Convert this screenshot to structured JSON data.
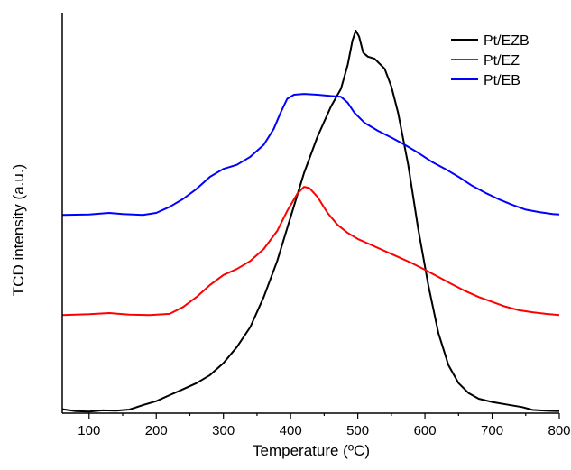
{
  "chart_data": {
    "type": "line",
    "xlabel": "Temperature (ºC)",
    "ylabel": "TCD intensity (a.u.)",
    "xlim": [
      60,
      800
    ],
    "ylim": [
      0,
      1.0
    ],
    "x_ticks": [
      100,
      200,
      300,
      400,
      500,
      600,
      700,
      800
    ],
    "y_ticks_visible": false,
    "grid": false,
    "legend_position": "top-right",
    "series": [
      {
        "name": "Pt/EZB",
        "color": "#000000",
        "points": [
          [
            60,
            0.01
          ],
          [
            80,
            0.005
          ],
          [
            100,
            0.004
          ],
          [
            120,
            0.007
          ],
          [
            140,
            0.006
          ],
          [
            160,
            0.009
          ],
          [
            180,
            0.02
          ],
          [
            200,
            0.03
          ],
          [
            220,
            0.045
          ],
          [
            240,
            0.06
          ],
          [
            260,
            0.075
          ],
          [
            280,
            0.095
          ],
          [
            300,
            0.125
          ],
          [
            320,
            0.165
          ],
          [
            340,
            0.215
          ],
          [
            360,
            0.29
          ],
          [
            380,
            0.38
          ],
          [
            400,
            0.49
          ],
          [
            420,
            0.6
          ],
          [
            440,
            0.69
          ],
          [
            460,
            0.765
          ],
          [
            475,
            0.81
          ],
          [
            485,
            0.87
          ],
          [
            492,
            0.93
          ],
          [
            497,
            0.955
          ],
          [
            502,
            0.94
          ],
          [
            508,
            0.9
          ],
          [
            515,
            0.89
          ],
          [
            525,
            0.885
          ],
          [
            540,
            0.86
          ],
          [
            550,
            0.815
          ],
          [
            560,
            0.75
          ],
          [
            575,
            0.62
          ],
          [
            590,
            0.46
          ],
          [
            605,
            0.32
          ],
          [
            620,
            0.2
          ],
          [
            635,
            0.12
          ],
          [
            650,
            0.075
          ],
          [
            665,
            0.05
          ],
          [
            680,
            0.036
          ],
          [
            700,
            0.028
          ],
          [
            720,
            0.022
          ],
          [
            745,
            0.015
          ],
          [
            760,
            0.008
          ],
          [
            780,
            0.006
          ],
          [
            800,
            0.005
          ]
        ]
      },
      {
        "name": "Pt/EZ",
        "color": "#ff0000",
        "points": [
          [
            60,
            0.245
          ],
          [
            100,
            0.247
          ],
          [
            130,
            0.25
          ],
          [
            160,
            0.246
          ],
          [
            190,
            0.245
          ],
          [
            220,
            0.248
          ],
          [
            240,
            0.265
          ],
          [
            260,
            0.29
          ],
          [
            280,
            0.32
          ],
          [
            300,
            0.345
          ],
          [
            320,
            0.36
          ],
          [
            340,
            0.38
          ],
          [
            360,
            0.41
          ],
          [
            380,
            0.455
          ],
          [
            395,
            0.505
          ],
          [
            410,
            0.548
          ],
          [
            420,
            0.565
          ],
          [
            428,
            0.562
          ],
          [
            440,
            0.54
          ],
          [
            455,
            0.5
          ],
          [
            470,
            0.47
          ],
          [
            485,
            0.45
          ],
          [
            500,
            0.435
          ],
          [
            520,
            0.42
          ],
          [
            540,
            0.405
          ],
          [
            560,
            0.39
          ],
          [
            580,
            0.375
          ],
          [
            600,
            0.358
          ],
          [
            620,
            0.34
          ],
          [
            640,
            0.322
          ],
          [
            660,
            0.305
          ],
          [
            680,
            0.29
          ],
          [
            700,
            0.278
          ],
          [
            720,
            0.266
          ],
          [
            740,
            0.257
          ],
          [
            760,
            0.252
          ],
          [
            780,
            0.248
          ],
          [
            800,
            0.245
          ]
        ]
      },
      {
        "name": "Pt/EB",
        "color": "#0000ff",
        "points": [
          [
            60,
            0.495
          ],
          [
            100,
            0.496
          ],
          [
            130,
            0.5
          ],
          [
            150,
            0.497
          ],
          [
            180,
            0.495
          ],
          [
            200,
            0.5
          ],
          [
            220,
            0.515
          ],
          [
            240,
            0.535
          ],
          [
            260,
            0.56
          ],
          [
            280,
            0.59
          ],
          [
            300,
            0.61
          ],
          [
            320,
            0.62
          ],
          [
            340,
            0.64
          ],
          [
            360,
            0.67
          ],
          [
            375,
            0.71
          ],
          [
            385,
            0.75
          ],
          [
            395,
            0.785
          ],
          [
            405,
            0.795
          ],
          [
            420,
            0.797
          ],
          [
            440,
            0.795
          ],
          [
            460,
            0.792
          ],
          [
            475,
            0.79
          ],
          [
            485,
            0.775
          ],
          [
            495,
            0.75
          ],
          [
            510,
            0.725
          ],
          [
            530,
            0.705
          ],
          [
            550,
            0.688
          ],
          [
            570,
            0.67
          ],
          [
            590,
            0.65
          ],
          [
            610,
            0.628
          ],
          [
            630,
            0.61
          ],
          [
            650,
            0.59
          ],
          [
            670,
            0.568
          ],
          [
            690,
            0.55
          ],
          [
            710,
            0.534
          ],
          [
            730,
            0.52
          ],
          [
            750,
            0.508
          ],
          [
            770,
            0.502
          ],
          [
            790,
            0.497
          ],
          [
            800,
            0.496
          ]
        ]
      }
    ]
  }
}
